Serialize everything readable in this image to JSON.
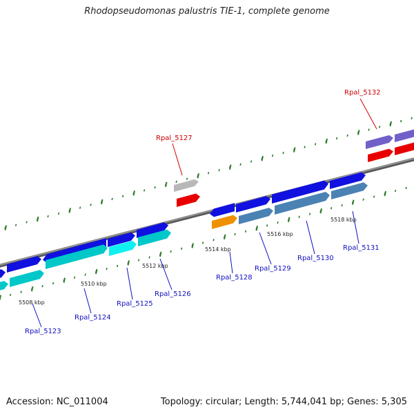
{
  "title": "Rhodopseudomonas palustris TIE-1, complete genome",
  "footer": {
    "accession": "Accession: NC_011004",
    "summary": "Topology: circular; Length: 5,744,041 bp; Genes: 5,305"
  },
  "colors": {
    "backbone": "#7a7a7a",
    "tick": "#2a7a2a",
    "label_blue": "#1010c0",
    "label_red": "#cc0000",
    "blue_gene": "#1010e0",
    "cyan_gene": "#00c8c8",
    "steel_gene": "#4a82b4",
    "red_gene": "#e80000",
    "gray_gene": "#b8b8b8",
    "orange_gene": "#f09000",
    "purple_gene": "#7060c8"
  },
  "scale_labels": [
    "5508 kbp",
    "5510 kbp",
    "5512 kbp",
    "5514 kbp",
    "5516 kbp",
    "5518 kbp"
  ],
  "genes": [
    {
      "name": "Rpal_5123",
      "color": "blue"
    },
    {
      "name": "Rpal_5124",
      "color": "blue"
    },
    {
      "name": "Rpal_5125",
      "color": "blue"
    },
    {
      "name": "Rpal_5126",
      "color": "blue"
    },
    {
      "name": "Rpal_5127",
      "color": "red"
    },
    {
      "name": "Rpal_5128",
      "color": "blue"
    },
    {
      "name": "Rpal_5129",
      "color": "blue"
    },
    {
      "name": "Rpal_5130",
      "color": "blue"
    },
    {
      "name": "Rpal_5131",
      "color": "blue"
    },
    {
      "name": "Rpal_5132",
      "color": "red"
    }
  ]
}
